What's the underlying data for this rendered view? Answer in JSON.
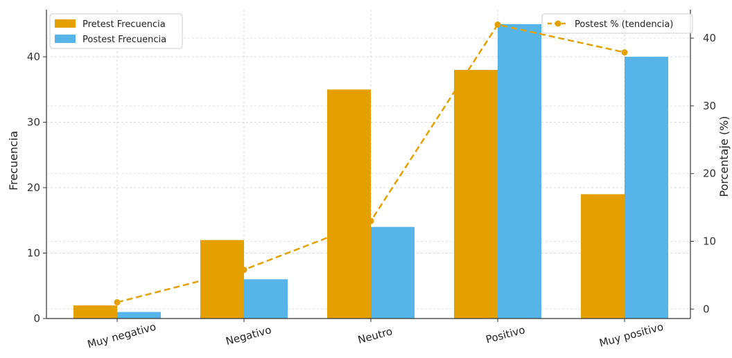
{
  "chart_data": {
    "type": "bar",
    "categories": [
      "Muy negativo",
      "Negativo",
      "Neutro",
      "Positivo",
      "Muy positivo"
    ],
    "series": [
      {
        "name": "Pretest Frecuencia",
        "type": "bar",
        "axis": "left",
        "color": "#E3A000",
        "values": [
          2,
          12,
          35,
          38,
          19
        ]
      },
      {
        "name": "Postest Frecuencia",
        "type": "bar",
        "axis": "left",
        "color": "#56B4E9",
        "values": [
          1,
          6,
          14,
          45,
          40
        ]
      },
      {
        "name": "Postest % (tendencia)",
        "type": "line",
        "axis": "right",
        "color": "#E3A000",
        "style": "dashed",
        "marker": "circle",
        "values": [
          1.0,
          5.8,
          13.0,
          42.0,
          37.9
        ]
      }
    ],
    "ylabel": "Frecuencia",
    "y2label": "Porcentaje (%)",
    "ylim": [
      0,
      47.2
    ],
    "y2lim": [
      -1.4,
      44.2
    ],
    "yticks": [
      "0",
      "10",
      "20",
      "30",
      "40"
    ],
    "y2ticks": [
      "0",
      "10",
      "20",
      "30",
      "40"
    ],
    "grid": true,
    "legend_bars": "top-left",
    "legend_line": "top-right"
  }
}
